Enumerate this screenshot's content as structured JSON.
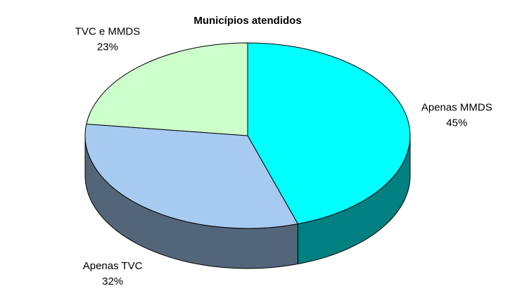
{
  "chart_data": {
    "type": "pie",
    "title": "Municípios atendidos",
    "categories": [
      "Apenas MMDS",
      "Apenas TVC",
      "TVC e MMDS"
    ],
    "values": [
      45,
      32,
      23
    ],
    "value_labels": [
      "45%",
      "32%",
      "23%"
    ],
    "colors": [
      "#00ffff",
      "#a6caf0",
      "#ccffcc"
    ],
    "three_d": true
  }
}
